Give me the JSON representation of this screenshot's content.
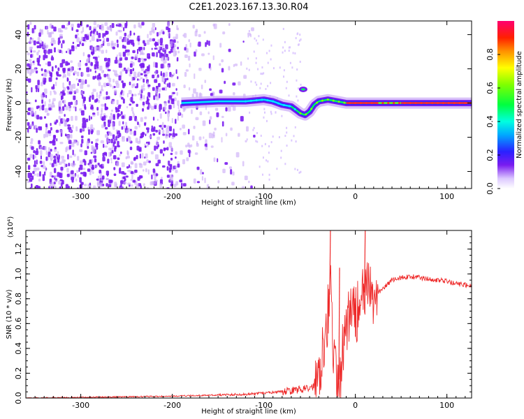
{
  "page": {
    "title": "C2E1.2023.167.13.30.R04"
  },
  "colors": {
    "background": "#ffffff",
    "noise_purple": "#7a1cf0",
    "snr_line": "#ee2a2a",
    "axis": "#000000"
  },
  "chart_data": [
    {
      "type": "heatmap",
      "title": "C2E1.2023.167.13.30.R04",
      "xlabel": "Height of straight line (km)",
      "ylabel": "Frequency (Hz)",
      "xlim": [
        -360,
        127
      ],
      "ylim": [
        -50,
        48
      ],
      "xticks": [
        -300,
        -200,
        -100,
        0,
        100
      ],
      "yticks": [
        -40,
        -20,
        0,
        20,
        40
      ],
      "colorbar": {
        "label": "Normalized spectral amplitude",
        "range": [
          0.0,
          1.0
        ],
        "ticks": [
          "0.0",
          "0.2",
          "0.4",
          "0.6",
          "0.8"
        ],
        "colormap": "rainbow"
      },
      "features": {
        "noise_region_x": [
          -360,
          -120
        ],
        "signal_track": {
          "x": [
            -190,
            -150,
            -120,
            -100,
            -90,
            -80,
            -70,
            -60,
            -55,
            -50,
            -45,
            -40,
            -30,
            -20,
            -10,
            0,
            25,
            50,
            75,
            100,
            127
          ],
          "y": [
            0,
            1,
            1,
            2,
            1,
            -1,
            -2,
            -6,
            -7,
            -5,
            -1,
            1,
            2,
            1,
            0,
            0,
            0,
            0,
            0,
            0,
            0
          ]
        },
        "secondary_blob": {
          "x": -57,
          "y": 8
        }
      }
    },
    {
      "type": "line",
      "title": "",
      "xlabel": "Height of straight line (km)",
      "ylabel": "SNR (10 * v/v)",
      "y_multiplier": "(x10⁴)",
      "xlim": [
        -360,
        127
      ],
      "ylim": [
        0,
        1.35
      ],
      "xticks": [
        -300,
        -200,
        -100,
        0,
        100
      ],
      "yticks": [
        "0.0",
        "0.2",
        "0.4",
        "0.6",
        "0.8",
        "1.0",
        "1.2"
      ],
      "series": [
        {
          "x": [
            -360,
            -300,
            -250,
            -200,
            -150,
            -120,
            -100,
            -80,
            -60,
            -50,
            -45,
            -40,
            -35,
            -30,
            -27,
            -25,
            -22,
            -20,
            -15,
            -10,
            -5,
            0,
            5,
            10,
            15,
            20,
            25,
            30,
            40,
            50,
            60,
            70,
            80,
            90,
            100,
            110,
            120,
            127
          ],
          "values": [
            0.0,
            0.005,
            0.01,
            0.015,
            0.025,
            0.03,
            0.04,
            0.05,
            0.07,
            0.08,
            0.1,
            0.2,
            0.45,
            0.7,
            0.9,
            0.5,
            0.2,
            0.05,
            0.3,
            0.55,
            0.7,
            0.68,
            0.72,
            0.85,
            0.85,
            0.8,
            0.85,
            0.88,
            0.95,
            0.97,
            0.98,
            0.97,
            0.96,
            0.95,
            0.94,
            0.92,
            0.91,
            0.91
          ],
          "spikes": [
            {
              "x": -28,
              "value": 1.35
            },
            {
              "x": -18,
              "value": 1.05
            },
            {
              "x": 10,
              "value": 1.35
            }
          ]
        }
      ]
    }
  ]
}
